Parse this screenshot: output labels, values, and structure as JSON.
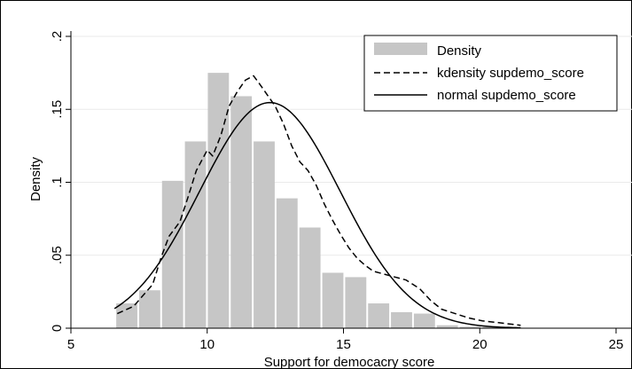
{
  "chart_data": {
    "type": "histogram",
    "title": "",
    "xlabel": "Support for democacry score",
    "ylabel": "Density",
    "xlim": [
      5,
      25
    ],
    "ylim": [
      0,
      0.2
    ],
    "x_ticks": [
      5,
      10,
      15,
      20,
      25
    ],
    "x_tick_labels": [
      "5",
      "10",
      "15",
      "20",
      "25"
    ],
    "y_ticks": [
      0,
      0.05,
      0.1,
      0.15,
      0.2
    ],
    "y_tick_labels": [
      "0",
      ".05",
      ".1",
      ".15",
      ".2"
    ],
    "grid": "horizontal",
    "legend_position": "top-right",
    "bin_width": 0.84,
    "histogram": {
      "name": "Density",
      "color": "#c6c6c6",
      "bin_centers": [
        7.05,
        7.89,
        8.73,
        9.57,
        10.41,
        11.25,
        12.09,
        12.93,
        13.77,
        14.61,
        15.45,
        16.29,
        17.13,
        17.97,
        18.81,
        19.65,
        20.49
      ],
      "values": [
        0.017,
        0.026,
        0.101,
        0.128,
        0.175,
        0.159,
        0.128,
        0.089,
        0.069,
        0.038,
        0.035,
        0.017,
        0.011,
        0.01,
        0.002,
        0.001,
        0.001
      ]
    },
    "series": [
      {
        "name": "kdensity supdemo_score",
        "style": "dashed",
        "color": "#000000",
        "x": [
          6.7,
          7.3,
          8.0,
          8.3,
          8.6,
          9.0,
          9.3,
          9.6,
          10.0,
          10.2,
          10.5,
          10.8,
          11.1,
          11.4,
          11.7,
          11.9,
          12.2,
          12.5,
          12.8,
          13.1,
          13.4,
          13.7,
          14.0,
          14.3,
          14.6,
          14.9,
          15.2,
          15.5,
          15.8,
          16.1,
          16.5,
          16.9,
          17.3,
          17.8,
          18.2,
          18.6,
          19.1,
          19.6,
          20.1,
          20.6,
          21.5
        ],
        "y": [
          0.01,
          0.015,
          0.03,
          0.048,
          0.063,
          0.073,
          0.09,
          0.108,
          0.122,
          0.118,
          0.132,
          0.152,
          0.162,
          0.17,
          0.173,
          0.168,
          0.16,
          0.152,
          0.14,
          0.125,
          0.114,
          0.108,
          0.098,
          0.085,
          0.074,
          0.064,
          0.055,
          0.048,
          0.043,
          0.039,
          0.037,
          0.035,
          0.033,
          0.027,
          0.019,
          0.013,
          0.01,
          0.007,
          0.005,
          0.004,
          0.002
        ]
      },
      {
        "name": "normal supdemo_score",
        "style": "solid",
        "color": "#000000",
        "distribution": "normal",
        "mean": 12.3,
        "sd": 2.58,
        "x_range": [
          6.6,
          21.5
        ]
      }
    ]
  }
}
